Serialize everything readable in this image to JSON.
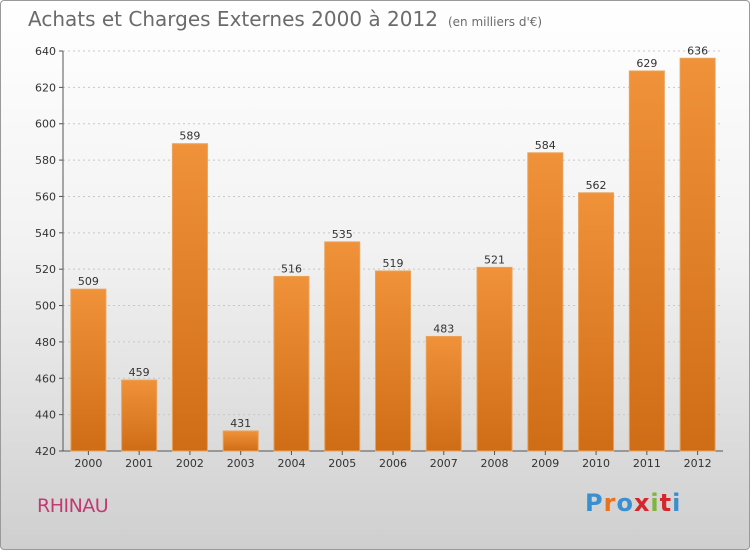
{
  "header": {
    "title": "Achats et Charges Externes 2000 à 2012",
    "subtitle": "(en milliers d'€)"
  },
  "footer": {
    "commune": "RHINAU",
    "brand": [
      "P",
      "r",
      "o",
      "x",
      "i",
      "t",
      "i"
    ],
    "brand_colors": [
      "#3a8fd0",
      "#e8731c",
      "#3a8fd0",
      "#d6262b",
      "#7fb63a",
      "#d6262b",
      "#3a8fd0"
    ]
  },
  "chart_data": {
    "type": "bar",
    "title": "Achats et Charges Externes 2000 à 2012",
    "subtitle": "(en milliers d'€)",
    "categories": [
      "2000",
      "2001",
      "2002",
      "2003",
      "2004",
      "2005",
      "2006",
      "2007",
      "2008",
      "2009",
      "2010",
      "2011",
      "2012"
    ],
    "values": [
      509,
      459,
      589,
      431,
      516,
      535,
      519,
      483,
      521,
      584,
      562,
      629,
      636
    ],
    "ylim": [
      420,
      640
    ],
    "yticks": [
      420,
      440,
      460,
      480,
      500,
      520,
      540,
      560,
      580,
      600,
      620,
      640
    ],
    "grid": "horizontal dashed",
    "bar_color": "#f0923a",
    "bar_color_dark": "#cf6d16"
  }
}
